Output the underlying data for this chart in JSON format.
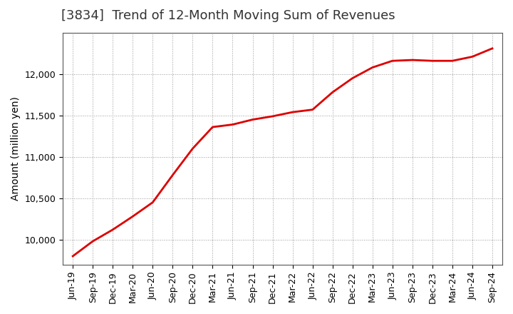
{
  "title": "[3834]  Trend of 12-Month Moving Sum of Revenues",
  "ylabel": "Amount (million yen)",
  "line_color": "#dd0000",
  "background_color": "#ffffff",
  "plot_bg_color": "#ffffff",
  "grid_color": "#999999",
  "x_labels": [
    "Jun-19",
    "Sep-19",
    "Dec-19",
    "Mar-20",
    "Jun-20",
    "Sep-20",
    "Dec-20",
    "Mar-21",
    "Jun-21",
    "Sep-21",
    "Dec-21",
    "Mar-22",
    "Jun-22",
    "Sep-22",
    "Dec-22",
    "Mar-23",
    "Jun-23",
    "Sep-23",
    "Dec-23",
    "Mar-24",
    "Jun-24",
    "Sep-24"
  ],
  "y_values": [
    9800,
    9980,
    10120,
    10280,
    10450,
    10780,
    11100,
    11360,
    11390,
    11450,
    11490,
    11540,
    11570,
    11780,
    11950,
    12080,
    12160,
    12170,
    12160,
    12160,
    12210,
    12310
  ],
  "yticks": [
    10000,
    10500,
    11000,
    11500,
    12000
  ],
  "ylim": [
    9700,
    12500
  ],
  "title_fontsize": 13,
  "axis_fontsize": 10,
  "tick_fontsize": 9
}
